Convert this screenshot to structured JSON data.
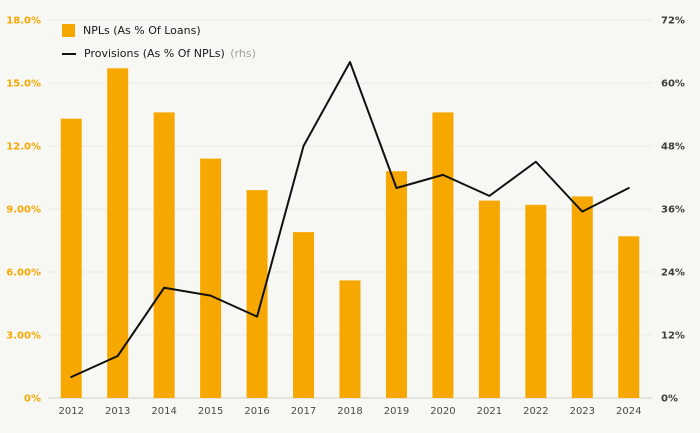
{
  "chart_data": {
    "type": "bar",
    "subtype": "bar+line dual axis",
    "title": "",
    "categories": [
      "2012",
      "2013",
      "2014",
      "2015",
      "2016",
      "2017",
      "2018",
      "2019",
      "2020",
      "2021",
      "2022",
      "2023",
      "2024"
    ],
    "series": [
      {
        "name": "NPLs (As % Of Loans)",
        "type": "bar",
        "axis": "left",
        "color": "#F7A800",
        "values": [
          13.3,
          15.7,
          13.6,
          11.4,
          9.9,
          7.9,
          5.6,
          10.8,
          13.6,
          9.4,
          9.2,
          9.6,
          7.7
        ]
      },
      {
        "name": "Provisions (As % Of NPLs)",
        "suffix": "(rhs)",
        "type": "line",
        "axis": "right",
        "color": "#111111",
        "values": [
          4,
          8,
          21,
          19.5,
          15.5,
          48,
          64,
          40,
          42.5,
          38.5,
          45,
          35.5,
          40
        ]
      }
    ],
    "left_axis": {
      "min": 0,
      "max": 18,
      "ticks": [
        "0%",
        "3.00%",
        "6.00%",
        "9.00%",
        "12.0%",
        "15.0%",
        "18.0%"
      ],
      "color": "#F7A800"
    },
    "right_axis": {
      "min": 0,
      "max": 72,
      "ticks": [
        "0%",
        "12%",
        "24%",
        "36%",
        "48%",
        "60%",
        "72%"
      ],
      "color": "#3d3d3a"
    },
    "x_axis": {
      "color": "#4a4a46"
    },
    "grid": {
      "on": true,
      "color": "#e9e9e4"
    },
    "legend_position": "top-left",
    "background": "#f7f7f4"
  }
}
